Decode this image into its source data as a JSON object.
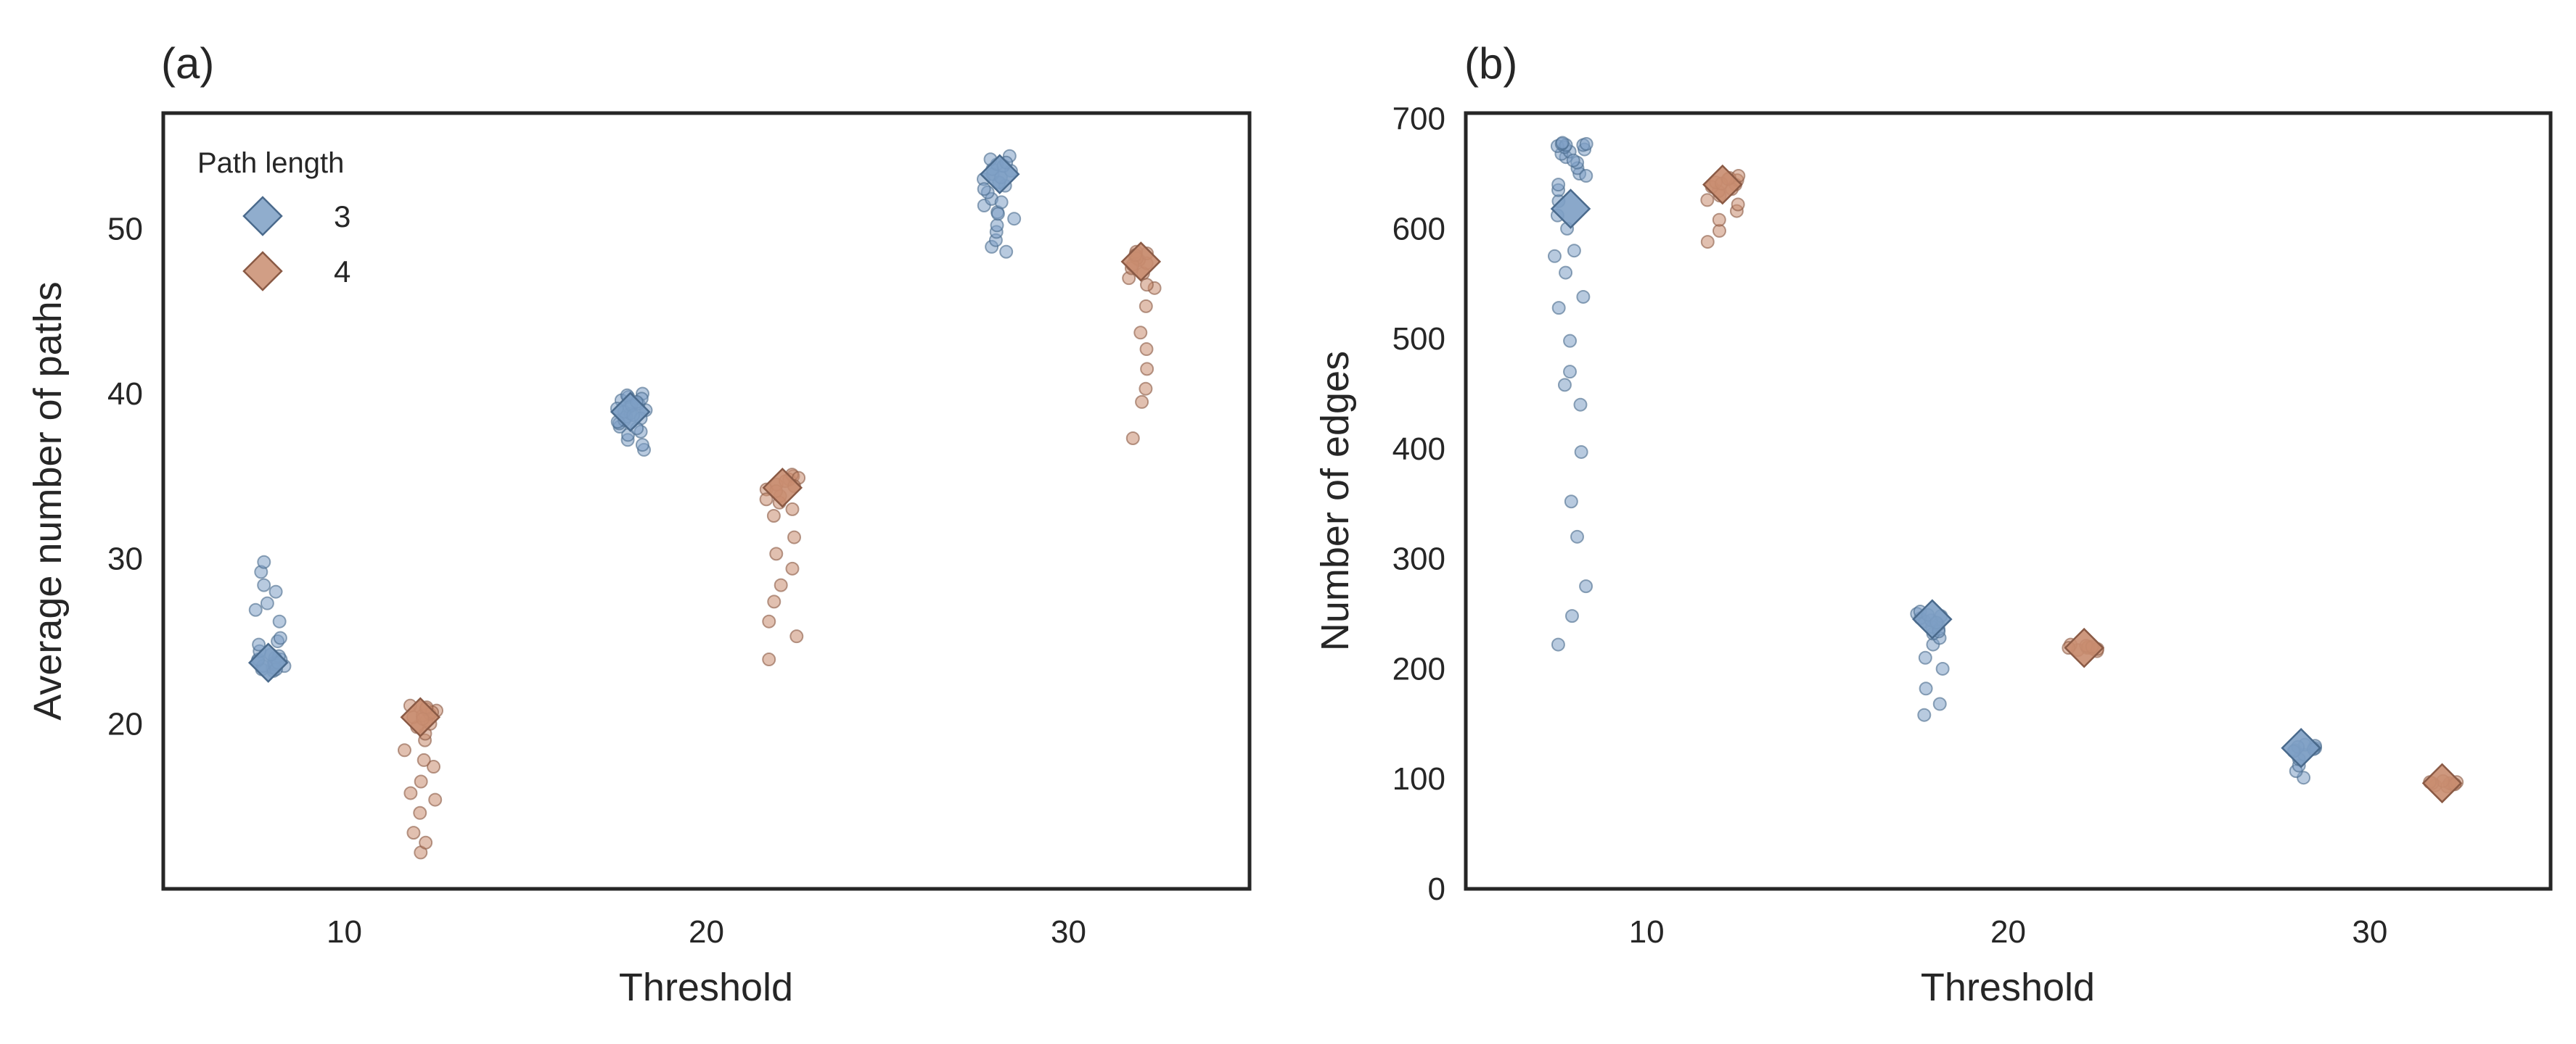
{
  "chart_data": [
    {
      "panel_label": "(a)",
      "type": "scatter",
      "subtype": "strip plot with jitter and diamond mean markers",
      "xlabel": "Threshold",
      "ylabel": "Average number of paths",
      "x_ticks": [
        10,
        20,
        30
      ],
      "x_tick_labels": [
        "10",
        "20",
        "30"
      ],
      "xlim": [
        5,
        35
      ],
      "y_ticks": [
        20,
        30,
        40,
        50
      ],
      "y_tick_labels": [
        "20",
        "30",
        "40",
        "50"
      ],
      "ylim": [
        10,
        57
      ],
      "grid": false,
      "legend": {
        "title": "Path length",
        "placement": "top-left",
        "entries": [
          {
            "label": "3",
            "color": "#7d9fc4"
          },
          {
            "label": "4",
            "color": "#c98d70"
          }
        ]
      },
      "series": [
        {
          "name": "3",
          "color": "#7d9fc4",
          "edge_color": "#4a6a8c",
          "groups": [
            {
              "x": 7.9,
              "mean": 23.7,
              "points": [
                23.2,
                23.3,
                23.4,
                23.5,
                23.6,
                23.7,
                23.8,
                23.9,
                24.0,
                24.1,
                23.3,
                23.5,
                23.7,
                23.9,
                24.2,
                24.4,
                24.8,
                25.0,
                25.2,
                26.2,
                26.9,
                27.3,
                28.0,
                28.4,
                29.2,
                29.8
              ]
            },
            {
              "x": 17.9,
              "mean": 38.9,
              "points": [
                36.6,
                36.9,
                37.2,
                37.5,
                37.7,
                38.0,
                38.2,
                38.4,
                38.6,
                38.8,
                39.0,
                39.2,
                39.4,
                39.6,
                39.8,
                40.0,
                38.5,
                38.9,
                39.3,
                39.7,
                37.9,
                38.3,
                38.7,
                39.1,
                39.5,
                39.9
              ]
            },
            {
              "x": 28.1,
              "mean": 53.3,
              "points": [
                48.6,
                48.9,
                49.3,
                49.8,
                50.2,
                50.6,
                51.0,
                51.4,
                51.8,
                52.2,
                52.6,
                53.0,
                53.3,
                53.6,
                53.9,
                54.2,
                54.4,
                52.8,
                53.1,
                53.5,
                53.8,
                54.0,
                52.4,
                51.6,
                50.9
              ]
            }
          ]
        },
        {
          "name": "4",
          "color": "#c98d70",
          "edge_color": "#8a5a45",
          "groups": [
            {
              "x": 12.1,
              "mean": 20.4,
              "points": [
                12.2,
                12.8,
                13.4,
                14.6,
                15.4,
                15.8,
                16.5,
                17.4,
                17.8,
                18.4,
                19.0,
                19.4,
                19.8,
                20.0,
                20.2,
                20.4,
                20.6,
                20.8,
                21.0,
                21.1,
                20.5,
                20.9,
                20.7,
                20.3,
                21.0
              ]
            },
            {
              "x": 22.1,
              "mean": 34.3,
              "points": [
                23.9,
                25.3,
                26.2,
                27.4,
                28.4,
                29.4,
                30.3,
                31.3,
                32.6,
                33.0,
                33.4,
                33.8,
                34.2,
                34.5,
                34.8,
                35.0,
                35.1,
                34.9,
                34.7,
                34.4,
                34.1,
                33.6
              ]
            },
            {
              "x": 32.0,
              "mean": 48.0,
              "points": [
                37.3,
                39.5,
                40.3,
                41.5,
                42.7,
                43.7,
                45.3,
                46.4,
                46.6,
                47.0,
                47.3,
                47.6,
                47.9,
                48.1,
                48.3,
                48.5,
                48.6,
                48.2,
                47.8,
                48.4
              ]
            }
          ]
        }
      ]
    },
    {
      "panel_label": "(b)",
      "type": "scatter",
      "subtype": "strip plot with jitter and diamond mean markers",
      "xlabel": "Threshold",
      "ylabel": "Number of edges",
      "x_ticks": [
        10,
        20,
        30
      ],
      "x_tick_labels": [
        "10",
        "20",
        "30"
      ],
      "xlim": [
        5,
        35
      ],
      "y_ticks": [
        0,
        100,
        200,
        300,
        400,
        500,
        600,
        700
      ],
      "y_tick_labels": [
        "0",
        "100",
        "200",
        "300",
        "400",
        "500",
        "600",
        "700"
      ],
      "ylim": [
        0,
        705
      ],
      "grid": false,
      "legend": null,
      "series": [
        {
          "name": "3",
          "color": "#7d9fc4",
          "edge_color": "#4a6a8c",
          "groups": [
            {
              "x": 7.9,
              "mean": 618,
              "points": [
                222,
                248,
                275,
                320,
                352,
                397,
                440,
                458,
                470,
                498,
                528,
                538,
                560,
                575,
                580,
                600,
                612,
                625,
                635,
                640,
                650,
                655,
                660,
                665,
                668,
                670,
                672,
                674,
                675,
                676,
                676,
                677,
                677,
                678,
                662,
                648
              ]
            },
            {
              "x": 17.9,
              "mean": 245,
              "points": [
                158,
                168,
                182,
                200,
                210,
                222,
                228,
                232,
                236,
                240,
                243,
                246,
                248,
                250,
                252,
                238,
                244,
                249,
                234,
                242
              ]
            },
            {
              "x": 28.1,
              "mean": 128,
              "points": [
                101,
                107,
                112,
                118,
                122,
                126,
                128,
                130,
                131,
                129,
                127,
                125
              ]
            }
          ]
        },
        {
          "name": "4",
          "color": "#c98d70",
          "edge_color": "#8a5a45",
          "groups": [
            {
              "x": 12.1,
              "mean": 640,
              "points": [
                588,
                598,
                608,
                616,
                622,
                626,
                630,
                634,
                638,
                640,
                642,
                644,
                646,
                648,
                636,
                641,
                645
              ]
            },
            {
              "x": 22.1,
              "mean": 219,
              "points": [
                216,
                217,
                218,
                219,
                220,
                221,
                222,
                218,
                220,
                219
              ]
            },
            {
              "x": 32.0,
              "mean": 96,
              "points": [
                93,
                94,
                95,
                96,
                97,
                98,
                95,
                96,
                97
              ]
            }
          ]
        }
      ]
    }
  ]
}
